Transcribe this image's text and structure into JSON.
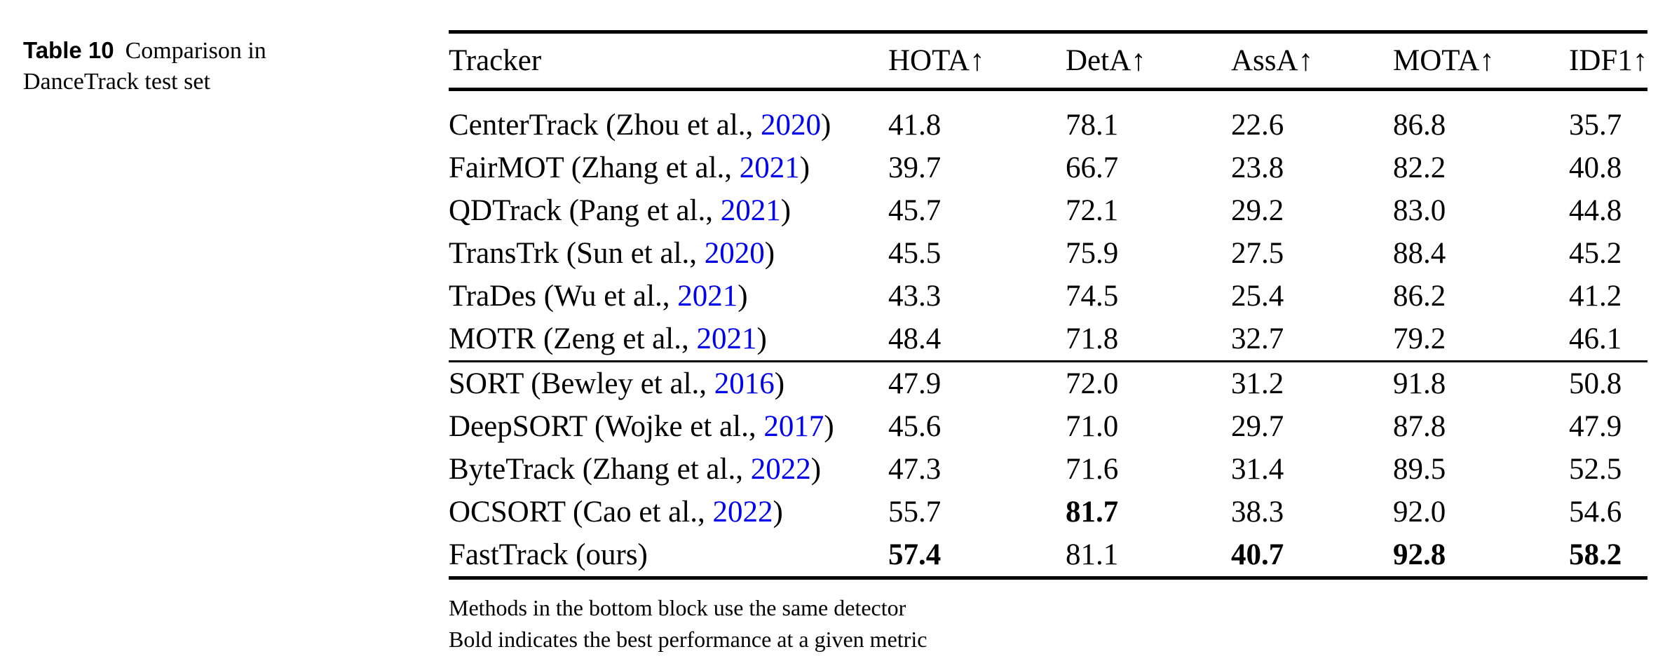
{
  "caption": {
    "label": "Table 10",
    "text": "Comparison in DanceTrack test set"
  },
  "colors": {
    "citation_link": "#0000EE",
    "text": "#000000",
    "background": "#ffffff"
  },
  "table": {
    "columns": [
      "Tracker",
      "HOTA↑",
      "DetA↑",
      "AssA↑",
      "MOTA↑",
      "IDF1↑"
    ],
    "group_split": 6,
    "rows": [
      {
        "tracker_prefix": "CenterTrack (Zhou et al., ",
        "citation_year": "2020",
        "tracker_suffix": ")",
        "values": {
          "hota": "41.8",
          "deta": "78.1",
          "assa": "22.6",
          "mota": "86.8",
          "idf1": "35.7"
        },
        "bold": []
      },
      {
        "tracker_prefix": "FairMOT (Zhang et al., ",
        "citation_year": "2021",
        "tracker_suffix": ")",
        "values": {
          "hota": "39.7",
          "deta": "66.7",
          "assa": "23.8",
          "mota": "82.2",
          "idf1": "40.8"
        },
        "bold": []
      },
      {
        "tracker_prefix": "QDTrack (Pang et al., ",
        "citation_year": "2021",
        "tracker_suffix": ")",
        "values": {
          "hota": "45.7",
          "deta": "72.1",
          "assa": "29.2",
          "mota": "83.0",
          "idf1": "44.8"
        },
        "bold": []
      },
      {
        "tracker_prefix": "TransTrk (Sun et al., ",
        "citation_year": "2020",
        "tracker_suffix": ")",
        "values": {
          "hota": "45.5",
          "deta": "75.9",
          "assa": "27.5",
          "mota": "88.4",
          "idf1": "45.2"
        },
        "bold": []
      },
      {
        "tracker_prefix": "TraDes (Wu et al., ",
        "citation_year": "2021",
        "tracker_suffix": ")",
        "values": {
          "hota": "43.3",
          "deta": "74.5",
          "assa": "25.4",
          "mota": "86.2",
          "idf1": "41.2"
        },
        "bold": []
      },
      {
        "tracker_prefix": "MOTR (Zeng et al., ",
        "citation_year": "2021",
        "tracker_suffix": ")",
        "values": {
          "hota": "48.4",
          "deta": "71.8",
          "assa": "32.7",
          "mota": "79.2",
          "idf1": "46.1"
        },
        "bold": []
      },
      {
        "tracker_prefix": "SORT (Bewley et al., ",
        "citation_year": "2016",
        "tracker_suffix": ")",
        "values": {
          "hota": "47.9",
          "deta": "72.0",
          "assa": "31.2",
          "mota": "91.8",
          "idf1": "50.8"
        },
        "bold": []
      },
      {
        "tracker_prefix": "DeepSORT (Wojke et al., ",
        "citation_year": "2017",
        "tracker_suffix": ")",
        "values": {
          "hota": "45.6",
          "deta": "71.0",
          "assa": "29.7",
          "mota": "87.8",
          "idf1": "47.9"
        },
        "bold": []
      },
      {
        "tracker_prefix": "ByteTrack (Zhang et al., ",
        "citation_year": "2022",
        "tracker_suffix": ")",
        "values": {
          "hota": "47.3",
          "deta": "71.6",
          "assa": "31.4",
          "mota": "89.5",
          "idf1": "52.5"
        },
        "bold": []
      },
      {
        "tracker_prefix": "OCSORT (Cao et al., ",
        "citation_year": "2022",
        "tracker_suffix": ")",
        "values": {
          "hota": "55.7",
          "deta": "81.7",
          "assa": "38.3",
          "mota": "92.0",
          "idf1": "54.6"
        },
        "bold": [
          "deta"
        ]
      },
      {
        "tracker_prefix": "FastTrack (ours)",
        "citation_year": "",
        "tracker_suffix": "",
        "values": {
          "hota": "57.4",
          "deta": "81.1",
          "assa": "40.7",
          "mota": "92.8",
          "idf1": "58.2"
        },
        "bold": [
          "hota",
          "assa",
          "mota",
          "idf1"
        ]
      }
    ]
  },
  "footnotes": [
    "Methods in the bottom block use the same detector",
    "Bold indicates the best performance at a given metric"
  ]
}
